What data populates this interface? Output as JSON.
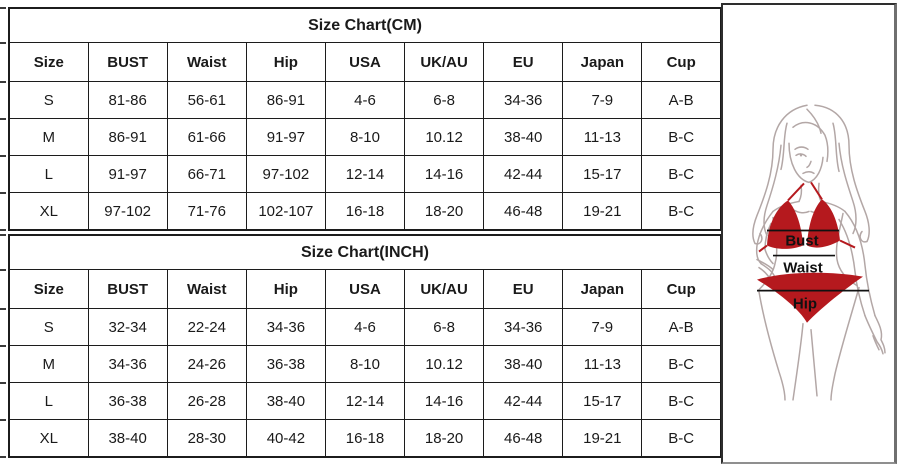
{
  "tables": [
    {
      "title": "Size Chart(CM)",
      "headers": [
        "Size",
        "BUST",
        "Waist",
        "Hip",
        "USA",
        "UK/AU",
        "EU",
        "Japan",
        "Cup"
      ],
      "rows": [
        [
          "S",
          "81-86",
          "56-61",
          "86-91",
          "4-6",
          "6-8",
          "34-36",
          "7-9",
          "A-B"
        ],
        [
          "M",
          "86-91",
          "61-66",
          "91-97",
          "8-10",
          "10.12",
          "38-40",
          "11-13",
          "B-C"
        ],
        [
          "L",
          "91-97",
          "66-71",
          "97-102",
          "12-14",
          "14-16",
          "42-44",
          "15-17",
          "B-C"
        ],
        [
          "XL",
          "97-102",
          "71-76",
          "102-107",
          "16-18",
          "18-20",
          "46-48",
          "19-21",
          "B-C"
        ]
      ]
    },
    {
      "title": "Size Chart(INCH)",
      "headers": [
        "Size",
        "BUST",
        "Waist",
        "Hip",
        "USA",
        "UK/AU",
        "EU",
        "Japan",
        "Cup"
      ],
      "rows": [
        [
          "S",
          "32-34",
          "22-24",
          "34-36",
          "4-6",
          "6-8",
          "34-36",
          "7-9",
          "A-B"
        ],
        [
          "M",
          "34-36",
          "24-26",
          "36-38",
          "8-10",
          "10.12",
          "38-40",
          "11-13",
          "B-C"
        ],
        [
          "L",
          "36-38",
          "26-28",
          "38-40",
          "12-14",
          "14-16",
          "42-44",
          "15-17",
          "B-C"
        ],
        [
          "XL",
          "38-40",
          "28-30",
          "40-42",
          "16-18",
          "18-20",
          "46-48",
          "19-21",
          "B-C"
        ]
      ]
    }
  ],
  "figure": {
    "labels": {
      "bust": "Bust",
      "waist": "Waist",
      "hip": "Hip"
    },
    "colors": {
      "bikini_red": "#b5191e",
      "line_art": "#b3a7a6",
      "measure": "#111111"
    }
  }
}
